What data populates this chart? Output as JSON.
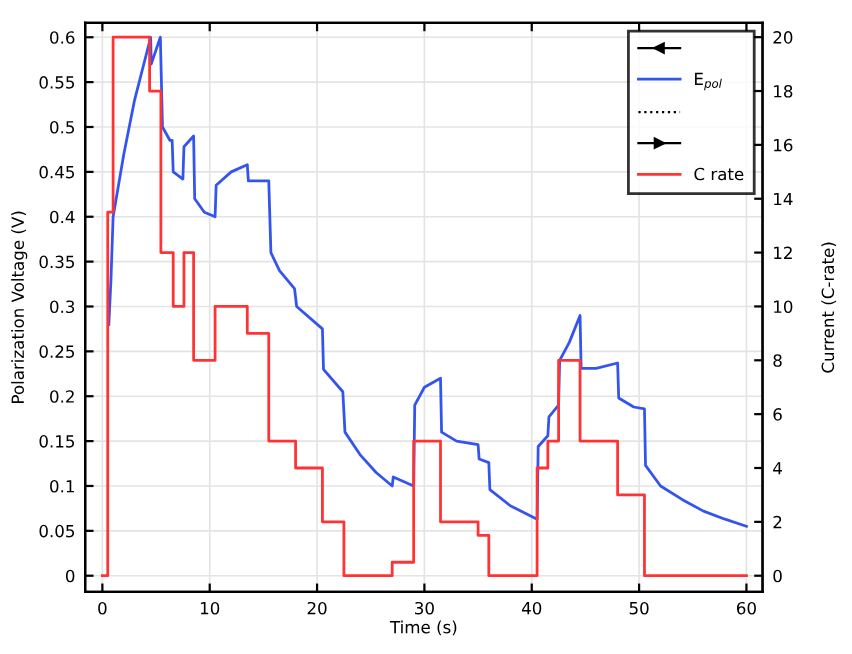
{
  "chart_data": {
    "type": "line",
    "xlabel": "Time (s)",
    "ylabel": "Polarization Voltage (V)",
    "y2label": "Current (C-rate)",
    "xlim": [
      -1.6,
      61.5
    ],
    "xticks": [
      0,
      10,
      20,
      30,
      40,
      50,
      60
    ],
    "ylim": [
      -0.018,
      0.616
    ],
    "yticks": [
      0,
      0.05,
      0.1,
      0.15,
      0.2,
      0.25,
      0.3,
      0.35,
      0.4,
      0.45,
      0.5,
      0.55,
      0.6
    ],
    "y2lim": [
      -0.6,
      20.53
    ],
    "y2ticks": [
      0,
      2,
      4,
      6,
      8,
      10,
      12,
      14,
      16,
      18,
      20
    ],
    "grid": true,
    "legend": "top right",
    "series": [
      {
        "name": "E$_{pol}$",
        "color": "#3355ee",
        "x": [
          0.6,
          0.8,
          1.0,
          2,
          3,
          4.5,
          4.55,
          5.4,
          5.6,
          6.3,
          6.5,
          6.6,
          7.5,
          7.6,
          8.5,
          8.6,
          9.5,
          10.5,
          10.6,
          12,
          13.5,
          13.6,
          15.5,
          15.7,
          16.5,
          17.9,
          18.1,
          20.5,
          20.6,
          22.4,
          22.6,
          24,
          25.5,
          27,
          27.1,
          29,
          29.1,
          30,
          31.5,
          31.6,
          33,
          35,
          35.1,
          36,
          36.1,
          38,
          40.5,
          40.6,
          41.5,
          41.6,
          42.5,
          42.6,
          43.5,
          44.5,
          44.6,
          46,
          48,
          48.1,
          49.5,
          50.5,
          50.6,
          52,
          54,
          56,
          58,
          60
        ],
        "values": [
          0.28,
          0.33,
          0.4,
          0.47,
          0.53,
          0.6,
          0.57,
          0.6,
          0.5,
          0.485,
          0.485,
          0.45,
          0.442,
          0.478,
          0.49,
          0.42,
          0.405,
          0.4,
          0.435,
          0.45,
          0.458,
          0.44,
          0.44,
          0.36,
          0.34,
          0.32,
          0.3,
          0.275,
          0.23,
          0.205,
          0.16,
          0.135,
          0.115,
          0.1,
          0.11,
          0.1,
          0.19,
          0.21,
          0.22,
          0.16,
          0.15,
          0.146,
          0.13,
          0.126,
          0.096,
          0.078,
          0.063,
          0.144,
          0.156,
          0.177,
          0.19,
          0.24,
          0.26,
          0.29,
          0.231,
          0.231,
          0.237,
          0.198,
          0.188,
          0.186,
          0.123,
          0.1,
          0.085,
          0.072,
          0.063,
          0.055
        ]
      },
      {
        "name": "C rate",
        "type": "step",
        "axis": "y2",
        "color": "#ff3333",
        "x": [
          0,
          0.5,
          1.0,
          4.4,
          5.45,
          6.6,
          7.6,
          8.5,
          10.5,
          13.5,
          15.5,
          18,
          20.5,
          22.5,
          27,
          29,
          31.5,
          35,
          36,
          40.5,
          41.5,
          42.5,
          44.5,
          48,
          50.5,
          60
        ],
        "values": [
          0,
          13.5,
          20,
          18,
          12,
          10,
          12,
          8,
          10,
          9,
          5,
          4,
          2,
          0,
          0.5,
          5,
          2,
          1.5,
          0,
          4,
          5,
          8,
          5,
          3,
          0,
          0
        ]
      }
    ]
  }
}
